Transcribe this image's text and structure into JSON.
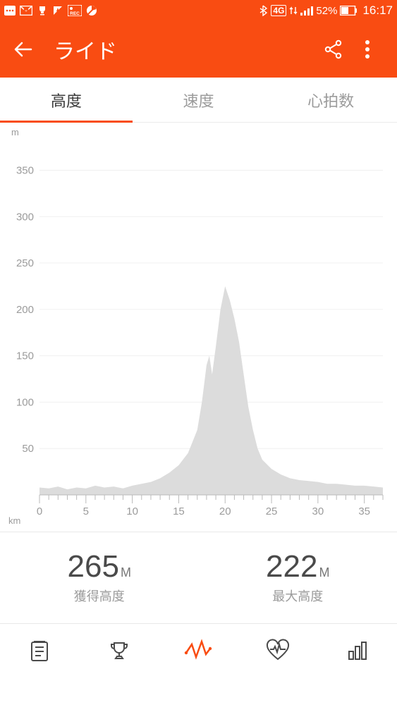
{
  "status": {
    "battery_pct": "52%",
    "net_label": "4G",
    "time": "16:17",
    "icons": [
      "notif",
      "mail",
      "trophy",
      "rec",
      "seg",
      "pie"
    ]
  },
  "appbar": {
    "title": "ライド"
  },
  "tabs": [
    {
      "label": "高度",
      "active": true
    },
    {
      "label": "速度",
      "active": false
    },
    {
      "label": "心拍数",
      "active": false
    }
  ],
  "chart": {
    "type": "area",
    "y_unit": "m",
    "x_unit": "km",
    "y_ticks": [
      50,
      100,
      150,
      200,
      250,
      300,
      350
    ],
    "ylim": [
      0,
      380
    ],
    "x_ticks": [
      0,
      5,
      10,
      15,
      20,
      25,
      30,
      35
    ],
    "xlim": [
      0,
      37
    ],
    "fill_color": "#dcdcdc",
    "grid_color": "#f0f0f0",
    "tick_color": "#bababa",
    "axis_label_color": "#9b9b9b",
    "axis_label_fontsize": 15,
    "background_color": "#ffffff",
    "series": [
      [
        0,
        8
      ],
      [
        1,
        7
      ],
      [
        2,
        9
      ],
      [
        3,
        6
      ],
      [
        4,
        8
      ],
      [
        5,
        7
      ],
      [
        6,
        10
      ],
      [
        7,
        8
      ],
      [
        8,
        9
      ],
      [
        9,
        7
      ],
      [
        10,
        10
      ],
      [
        11,
        12
      ],
      [
        12,
        14
      ],
      [
        13,
        18
      ],
      [
        14,
        24
      ],
      [
        15,
        32
      ],
      [
        16,
        45
      ],
      [
        17,
        70
      ],
      [
        17.5,
        100
      ],
      [
        18,
        140
      ],
      [
        18.3,
        150
      ],
      [
        18.6,
        130
      ],
      [
        19,
        160
      ],
      [
        19.5,
        200
      ],
      [
        20,
        225
      ],
      [
        20.5,
        210
      ],
      [
        21,
        190
      ],
      [
        21.5,
        165
      ],
      [
        22,
        130
      ],
      [
        22.5,
        95
      ],
      [
        23,
        70
      ],
      [
        23.5,
        50
      ],
      [
        24,
        38
      ],
      [
        25,
        28
      ],
      [
        26,
        22
      ],
      [
        27,
        18
      ],
      [
        28,
        16
      ],
      [
        29,
        15
      ],
      [
        30,
        14
      ],
      [
        31,
        12
      ],
      [
        32,
        12
      ],
      [
        33,
        11
      ],
      [
        34,
        10
      ],
      [
        35,
        10
      ],
      [
        36,
        9
      ],
      [
        37,
        8
      ]
    ]
  },
  "stats": {
    "gain": {
      "value": "265",
      "unit": "M",
      "label": "獲得高度"
    },
    "max": {
      "value": "222",
      "unit": "M",
      "label": "最大高度"
    }
  },
  "nav": {
    "active_index": 2
  },
  "colors": {
    "brand": "#f94c12",
    "text_muted": "#9b9b9b",
    "text": "#4a4a4a"
  }
}
